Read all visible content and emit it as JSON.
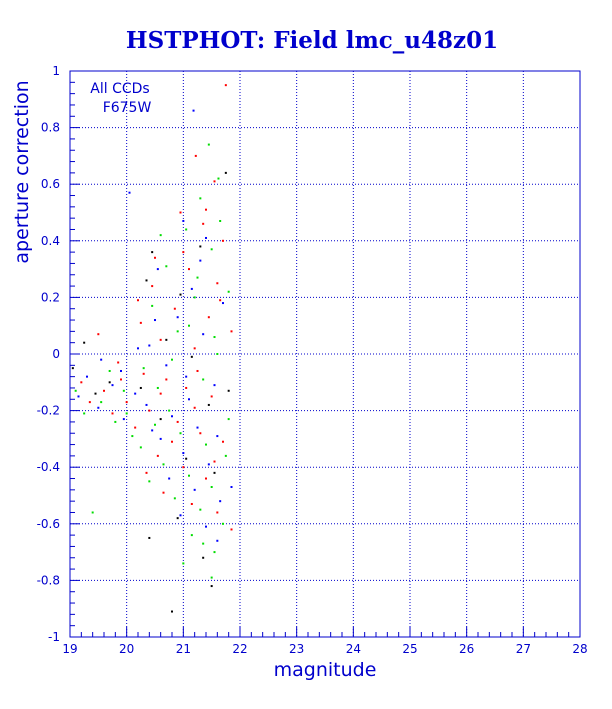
{
  "chart_data": {
    "type": "scatter",
    "title": "HSTPHOT: Field lmc_u48z01",
    "xlabel": "magnitude",
    "ylabel": "aperture correction",
    "xlim": [
      19,
      28
    ],
    "ylim": [
      -1,
      1
    ],
    "x_ticks": [
      19,
      20,
      21,
      22,
      23,
      24,
      25,
      26,
      27,
      28
    ],
    "y_ticks": [
      1,
      0.8,
      0.6,
      0.4,
      0.2,
      0,
      -0.2,
      -0.4,
      -0.6,
      -0.8,
      -1
    ],
    "x_tick_labels": [
      "19",
      "20",
      "21",
      "22",
      "23",
      "24",
      "25",
      "26",
      "27",
      "28"
    ],
    "y_tick_labels": [
      "1",
      "0.8",
      "0.6",
      "0.4",
      "0.2",
      "0",
      "-0.2",
      "-0.4",
      "-0.6",
      "-0.8",
      "-1"
    ],
    "grid": true,
    "annotations": [
      "All CCDs",
      "F675W"
    ],
    "series": [
      {
        "color": "#ff0000",
        "points": [
          [
            21.75,
            0.95
          ],
          [
            21.22,
            0.7
          ],
          [
            21.55,
            0.61
          ],
          [
            20.95,
            0.5
          ],
          [
            21.35,
            0.46
          ],
          [
            21.7,
            0.4
          ],
          [
            20.5,
            0.34
          ],
          [
            21.1,
            0.3
          ],
          [
            21.6,
            0.25
          ],
          [
            20.2,
            0.19
          ],
          [
            20.85,
            0.16
          ],
          [
            21.45,
            0.13
          ],
          [
            21.85,
            0.08
          ],
          [
            20.6,
            0.05
          ],
          [
            21.2,
            0.02
          ],
          [
            19.5,
            0.07
          ],
          [
            19.85,
            -0.03
          ],
          [
            20.3,
            -0.07
          ],
          [
            20.7,
            -0.09
          ],
          [
            21.05,
            -0.12
          ],
          [
            21.5,
            -0.15
          ],
          [
            19.2,
            -0.1
          ],
          [
            19.6,
            -0.13
          ],
          [
            20.0,
            -0.17
          ],
          [
            20.4,
            -0.2
          ],
          [
            20.9,
            -0.24
          ],
          [
            21.3,
            -0.28
          ],
          [
            21.7,
            -0.31
          ],
          [
            20.55,
            -0.36
          ],
          [
            21.0,
            -0.4
          ],
          [
            21.4,
            -0.44
          ],
          [
            20.65,
            -0.49
          ],
          [
            21.15,
            -0.53
          ],
          [
            21.6,
            -0.56
          ],
          [
            21.85,
            -0.62
          ],
          [
            19.35,
            -0.17
          ],
          [
            19.75,
            -0.21
          ],
          [
            20.15,
            -0.26
          ],
          [
            20.8,
            -0.31
          ],
          [
            21.25,
            -0.06
          ],
          [
            21.65,
            0.19
          ],
          [
            20.45,
            0.24
          ],
          [
            21.0,
            0.36
          ],
          [
            21.4,
            0.51
          ],
          [
            20.25,
            0.11
          ],
          [
            19.9,
            -0.09
          ],
          [
            20.6,
            -0.14
          ],
          [
            21.2,
            -0.19
          ],
          [
            21.55,
            -0.38
          ],
          [
            20.35,
            -0.42
          ]
        ]
      },
      {
        "color": "#00dd00",
        "points": [
          [
            21.45,
            0.74
          ],
          [
            21.62,
            0.62
          ],
          [
            21.3,
            0.55
          ],
          [
            21.05,
            0.44
          ],
          [
            21.5,
            0.37
          ],
          [
            20.7,
            0.31
          ],
          [
            21.25,
            0.27
          ],
          [
            21.8,
            0.22
          ],
          [
            20.45,
            0.17
          ],
          [
            21.1,
            0.1
          ],
          [
            21.55,
            0.06
          ],
          [
            20.8,
            -0.02
          ],
          [
            20.3,
            -0.05
          ],
          [
            19.7,
            -0.06
          ],
          [
            21.35,
            -0.09
          ],
          [
            19.1,
            -0.13
          ],
          [
            19.55,
            -0.17
          ],
          [
            20.0,
            -0.21
          ],
          [
            20.5,
            -0.25
          ],
          [
            20.95,
            -0.28
          ],
          [
            21.4,
            -0.32
          ],
          [
            21.75,
            -0.36
          ],
          [
            20.25,
            -0.33
          ],
          [
            20.65,
            -0.39
          ],
          [
            21.1,
            -0.43
          ],
          [
            21.5,
            -0.47
          ],
          [
            20.85,
            -0.51
          ],
          [
            21.3,
            -0.55
          ],
          [
            21.7,
            -0.6
          ],
          [
            19.4,
            -0.56
          ],
          [
            21.15,
            -0.64
          ],
          [
            21.55,
            -0.7
          ],
          [
            21.0,
            -0.74
          ],
          [
            21.5,
            -0.79
          ],
          [
            19.8,
            -0.24
          ],
          [
            20.1,
            -0.29
          ],
          [
            20.55,
            -0.12
          ],
          [
            21.6,
            0.0
          ],
          [
            20.9,
            0.08
          ],
          [
            21.2,
            0.2
          ],
          [
            20.6,
            0.42
          ],
          [
            21.65,
            0.47
          ],
          [
            19.25,
            -0.21
          ],
          [
            19.95,
            -0.13
          ],
          [
            20.4,
            -0.45
          ],
          [
            21.8,
            -0.23
          ],
          [
            21.35,
            -0.67
          ],
          [
            20.75,
            -0.2
          ]
        ]
      },
      {
        "color": "#0000ff",
        "points": [
          [
            21.18,
            0.86
          ],
          [
            21.0,
            0.47
          ],
          [
            21.4,
            0.41
          ],
          [
            20.55,
            0.3
          ],
          [
            21.15,
            0.23
          ],
          [
            21.7,
            0.18
          ],
          [
            20.9,
            0.13
          ],
          [
            21.35,
            0.07
          ],
          [
            20.4,
            0.03
          ],
          [
            19.55,
            -0.02
          ],
          [
            19.9,
            -0.06
          ],
          [
            20.7,
            -0.04
          ],
          [
            21.05,
            -0.08
          ],
          [
            21.55,
            -0.11
          ],
          [
            19.15,
            -0.15
          ],
          [
            19.5,
            -0.19
          ],
          [
            19.95,
            -0.23
          ],
          [
            20.35,
            -0.18
          ],
          [
            20.8,
            -0.22
          ],
          [
            21.25,
            -0.26
          ],
          [
            21.6,
            -0.29
          ],
          [
            20.6,
            -0.3
          ],
          [
            21.0,
            -0.35
          ],
          [
            21.45,
            -0.39
          ],
          [
            20.75,
            -0.44
          ],
          [
            21.2,
            -0.48
          ],
          [
            21.65,
            -0.52
          ],
          [
            20.95,
            -0.57
          ],
          [
            21.4,
            -0.61
          ],
          [
            21.6,
            -0.66
          ],
          [
            19.3,
            -0.08
          ],
          [
            19.75,
            -0.11
          ],
          [
            20.15,
            -0.14
          ],
          [
            21.85,
            -0.47
          ],
          [
            20.5,
            0.12
          ],
          [
            21.3,
            0.33
          ],
          [
            20.05,
            0.57
          ],
          [
            20.2,
            0.02
          ],
          [
            21.1,
            -0.16
          ],
          [
            20.45,
            -0.27
          ]
        ]
      },
      {
        "color": "#000000",
        "points": [
          [
            20.8,
            -0.91
          ],
          [
            20.4,
            -0.65
          ],
          [
            21.5,
            -0.82
          ],
          [
            20.45,
            0.36
          ],
          [
            21.3,
            0.38
          ],
          [
            20.95,
            0.21
          ],
          [
            21.75,
            0.64
          ],
          [
            20.7,
            0.05
          ],
          [
            21.15,
            -0.01
          ],
          [
            19.7,
            -0.1
          ],
          [
            20.25,
            -0.12
          ],
          [
            21.45,
            -0.18
          ],
          [
            19.05,
            -0.05
          ],
          [
            19.45,
            -0.14
          ],
          [
            20.6,
            -0.23
          ],
          [
            21.05,
            -0.37
          ],
          [
            21.55,
            -0.42
          ],
          [
            20.9,
            -0.58
          ],
          [
            21.35,
            -0.72
          ],
          [
            19.25,
            0.04
          ],
          [
            21.8,
            -0.13
          ],
          [
            20.35,
            0.26
          ]
        ]
      }
    ]
  }
}
